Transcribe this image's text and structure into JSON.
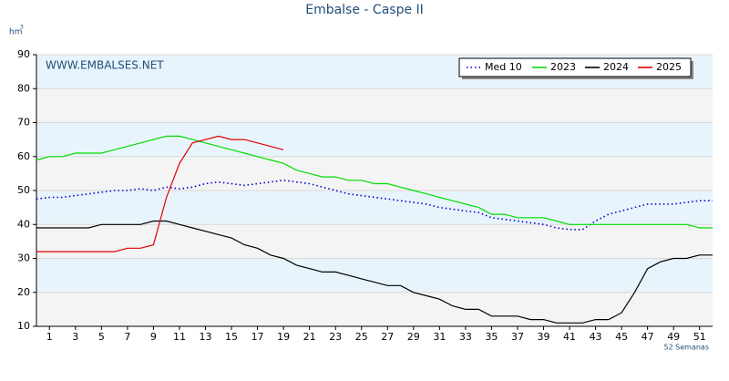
{
  "chart_data": {
    "type": "line",
    "title": "Embalse - Caspe II",
    "watermark": "WWW.EMBALSES.NET",
    "y_unit": "hm",
    "y_unit_exponent": "3",
    "x_label": "52 Semanas",
    "x": [
      0,
      1,
      2,
      3,
      4,
      5,
      6,
      7,
      8,
      9,
      10,
      11,
      12,
      13,
      14,
      15,
      16,
      17,
      18,
      19,
      20,
      21,
      22,
      23,
      24,
      25,
      26,
      27,
      28,
      29,
      30,
      31,
      32,
      33,
      34,
      35,
      36,
      37,
      38,
      39,
      40,
      41,
      42,
      43,
      44,
      45,
      46,
      47,
      48,
      49,
      50,
      51,
      52
    ],
    "xlim": [
      0,
      52
    ],
    "xticks": [
      1,
      3,
      5,
      7,
      9,
      11,
      13,
      15,
      17,
      19,
      21,
      23,
      25,
      27,
      29,
      31,
      33,
      35,
      37,
      39,
      41,
      43,
      45,
      47,
      49,
      51
    ],
    "ylim": [
      10,
      90
    ],
    "yticks": [
      10,
      20,
      30,
      40,
      50,
      60,
      70,
      80,
      90
    ],
    "grid": true,
    "legend": "upper right",
    "series": [
      {
        "name": "Med 10",
        "color": "#0000cc",
        "style": "dotted",
        "values": [
          47.5,
          48,
          48,
          48.5,
          49,
          49.5,
          50,
          50,
          50.5,
          50,
          51,
          50.5,
          51,
          52,
          52.5,
          52,
          51.5,
          52,
          52.5,
          53,
          52.5,
          52,
          51,
          50,
          49,
          48.5,
          48,
          47.5,
          47,
          46.5,
          46,
          45,
          44.5,
          44,
          43.5,
          42,
          41.5,
          41,
          40.5,
          40,
          39,
          38.5,
          38.5,
          41,
          43,
          44,
          45,
          46,
          46,
          46,
          46.5,
          47,
          47
        ]
      },
      {
        "name": "2023",
        "color": "#00dd00",
        "style": "solid",
        "values": [
          59,
          60,
          60,
          61,
          61,
          61,
          62,
          63,
          64,
          65,
          66,
          66,
          65,
          64,
          63,
          62,
          61,
          60,
          59,
          58,
          56,
          55,
          54,
          54,
          53,
          53,
          52,
          52,
          51,
          50,
          49,
          48,
          47,
          46,
          45,
          43,
          43,
          42,
          42,
          42,
          41,
          40,
          40,
          40,
          40,
          40,
          40,
          40,
          40,
          40,
          40,
          39,
          39
        ]
      },
      {
        "name": "2024",
        "color": "#000000",
        "style": "solid",
        "values": [
          39,
          39,
          39,
          39,
          39,
          40,
          40,
          40,
          40,
          41,
          41,
          40,
          39,
          38,
          37,
          36,
          34,
          33,
          31,
          30,
          28,
          27,
          26,
          26,
          25,
          24,
          23,
          22,
          22,
          20,
          19,
          18,
          16,
          15,
          15,
          13,
          13,
          13,
          12,
          12,
          11,
          11,
          11,
          12,
          12,
          14,
          20,
          27,
          29,
          30,
          30,
          31,
          31
        ]
      },
      {
        "name": "2025",
        "color": "#dd0000",
        "style": "solid",
        "values": [
          32,
          32,
          32,
          32,
          32,
          32,
          32,
          33,
          33,
          34,
          48,
          58,
          64,
          65,
          66,
          65,
          65,
          64,
          63,
          62,
          null,
          null,
          null,
          null,
          null,
          null,
          null,
          null,
          null,
          null,
          null,
          null,
          null,
          null,
          null,
          null,
          null,
          null,
          null,
          null,
          null,
          null,
          null,
          null,
          null,
          null,
          null,
          null,
          null,
          null,
          null,
          null,
          null
        ]
      }
    ]
  }
}
